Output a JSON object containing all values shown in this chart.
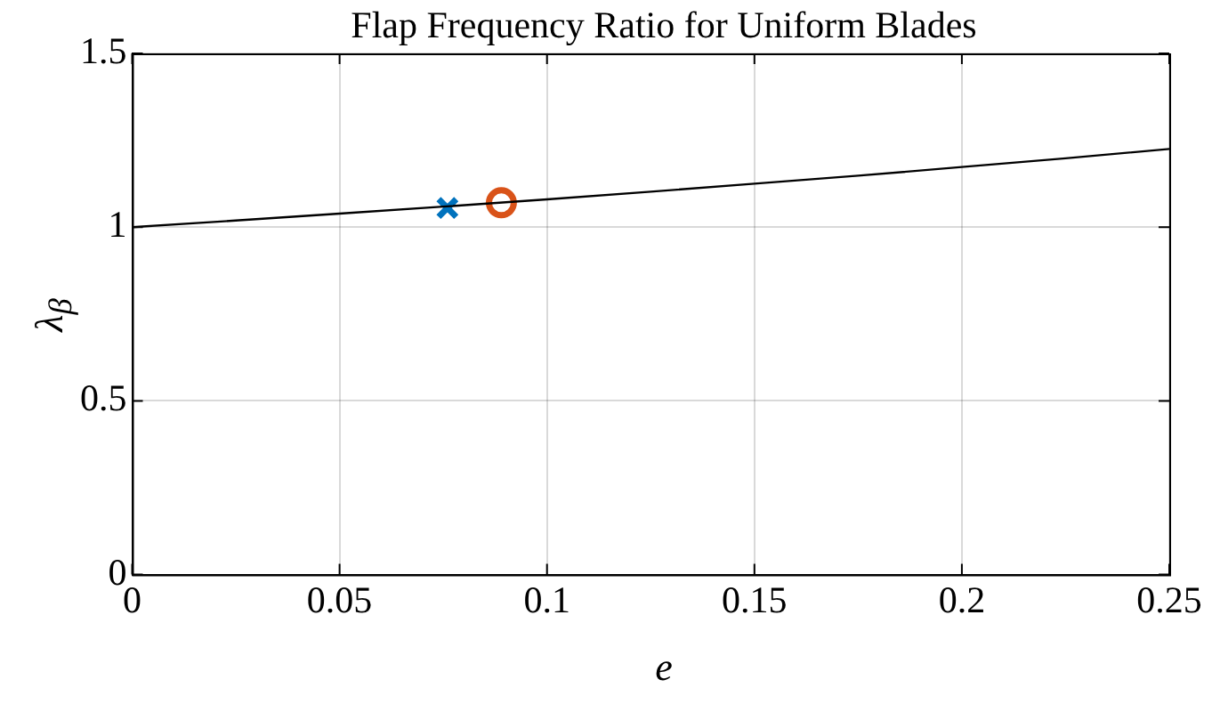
{
  "chart_data": {
    "type": "line",
    "title": "Flap Frequency Ratio for Uniform Blades",
    "xlabel": "e",
    "ylabel": "λ$_{β}$",
    "xlim": [
      0,
      0.25
    ],
    "xticks": [
      0,
      0.05,
      0.1,
      0.15,
      0.2,
      0.25
    ],
    "ylim": [
      0,
      1.5
    ],
    "yticks": [
      0,
      0.5,
      1,
      1.5
    ],
    "grid": true,
    "legend": false,
    "series": [
      {
        "color": "#000000",
        "marker": "none",
        "x": [
          0,
          0.025,
          0.05,
          0.075,
          0.1,
          0.125,
          0.15,
          0.175,
          0.2,
          0.225,
          0.25
        ],
        "values": [
          1,
          1.019,
          1.039,
          1.059,
          1.08,
          1.102,
          1.125,
          1.148,
          1.173,
          1.198,
          1.225
        ]
      },
      {
        "type": "scatter",
        "color": "#0072bd",
        "marker": "cross",
        "x": [
          0.076
        ],
        "values": [
          1.055
        ]
      },
      {
        "type": "scatter",
        "color": "#d95319",
        "marker": "circle",
        "x": [
          0.089
        ],
        "values": [
          1.07
        ]
      }
    ]
  }
}
